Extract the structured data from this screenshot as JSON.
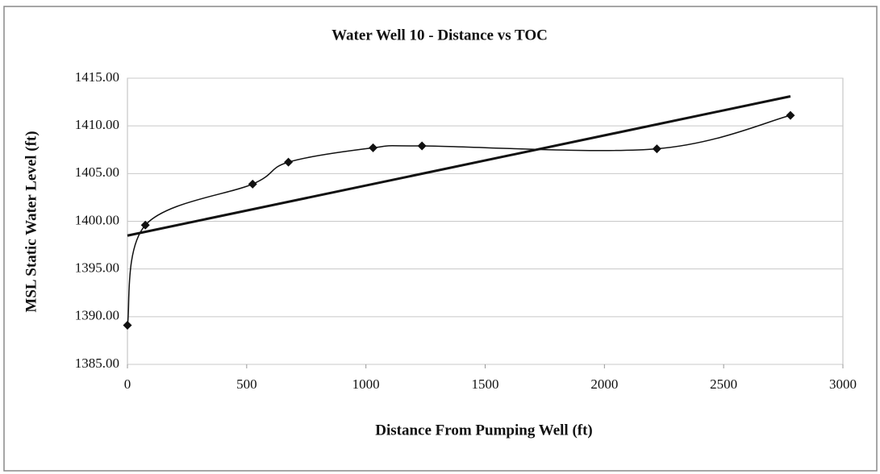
{
  "chart_data": {
    "type": "scatter",
    "title": "Water Well 10 - Distance vs TOC",
    "xlabel": "Distance From Pumping Well (ft)",
    "ylabel": "MSL Static Water Level (ft)",
    "x": [
      0,
      75,
      525,
      675,
      1030,
      1235,
      2220,
      2780
    ],
    "series": [
      {
        "color": "#111111",
        "values": [
          1389.1,
          1399.6,
          1403.9,
          1406.2,
          1407.7,
          1407.9,
          1407.6,
          1411.1
        ],
        "smooth": true
      }
    ],
    "trendline": {
      "x": [
        0,
        2780
      ],
      "values": [
        1398.5,
        1413.1
      ],
      "color": "#111111"
    },
    "xlim": [
      0,
      3000
    ],
    "xticks": [
      0,
      500,
      1000,
      1500,
      2000,
      2500,
      3000
    ],
    "ylim": [
      1385,
      1415
    ],
    "yticks": [
      {
        "value": 1385,
        "label": "1385.00"
      },
      {
        "value": 1390,
        "label": "1390.00"
      },
      {
        "value": 1395,
        "label": "1395.00"
      },
      {
        "value": 1400,
        "label": "1400.00"
      },
      {
        "value": 1405,
        "label": "1405.00"
      },
      {
        "value": 1410,
        "label": "1410.00"
      },
      {
        "value": 1415,
        "label": "1415.00"
      }
    ],
    "grid": true
  }
}
